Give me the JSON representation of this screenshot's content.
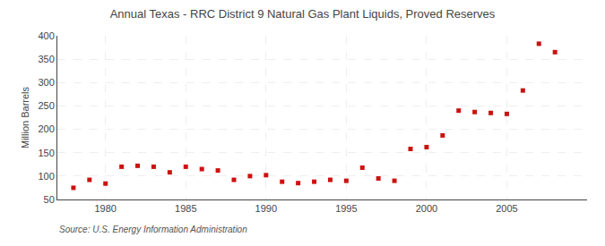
{
  "chart_data": {
    "type": "scatter",
    "title": "Annual Texas - RRC District 9 Natural Gas Plant Liquids, Proved Reserves",
    "ylabel": "Million Barrels",
    "annotations": [
      "Source: U.S. Energy Information Administration"
    ],
    "x": [
      1978,
      1979,
      1980,
      1981,
      1982,
      1983,
      1984,
      1985,
      1986,
      1987,
      1988,
      1989,
      1990,
      1991,
      1992,
      1993,
      1994,
      1995,
      1996,
      1997,
      1998,
      1999,
      2000,
      2001,
      2002,
      2003,
      2004,
      2005,
      2006,
      2007,
      2008
    ],
    "values": [
      75,
      92,
      84,
      120,
      122,
      120,
      108,
      120,
      115,
      112,
      92,
      100,
      102,
      88,
      85,
      88,
      92,
      90,
      118,
      95,
      90,
      158,
      162,
      187,
      240,
      237,
      235,
      233,
      283,
      383,
      365
    ],
    "color": "#cc1111",
    "marker": "square",
    "xlim": [
      1977,
      2010
    ],
    "ylim": [
      50,
      400
    ],
    "xticks": [
      1980,
      1985,
      1990,
      1995,
      2000,
      2005
    ],
    "yticks": [
      50,
      100,
      150,
      200,
      250,
      300,
      350,
      400
    ],
    "grid": true
  }
}
